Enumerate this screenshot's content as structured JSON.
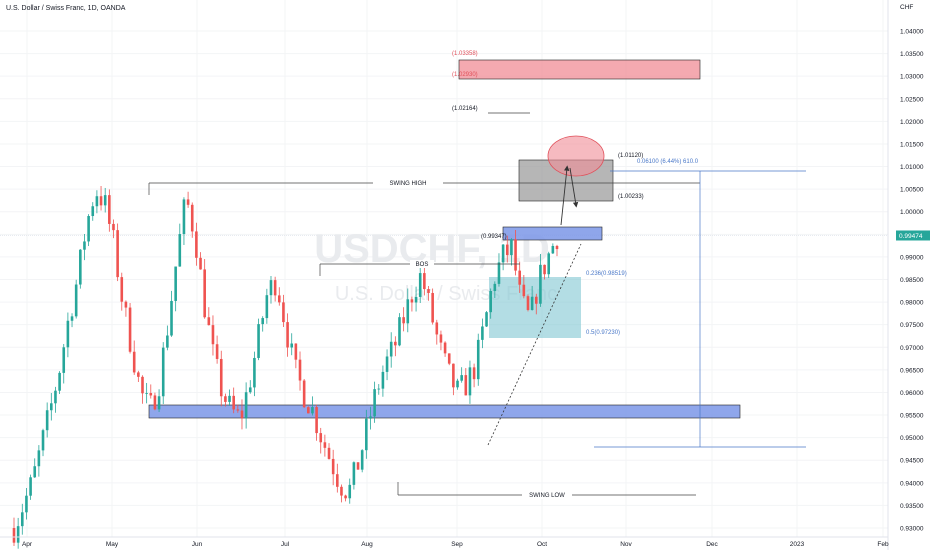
{
  "header": {
    "title": "U.S. Dollar / Swiss Franc, 1D, OANDA"
  },
  "watermark": {
    "symbol": "USDCHF, 1D",
    "name": "U.S. Dollar / Swiss Franc"
  },
  "chart_data": {
    "type": "candlestick",
    "currency": "CHF",
    "ylim": [
      0.927,
      1.0475
    ],
    "y_ticks": [
      "1.04000",
      "1.03500",
      "1.03000",
      "1.02500",
      "1.02000",
      "1.01500",
      "1.01000",
      "1.00500",
      "1.00000",
      "0.99500",
      "0.99000",
      "0.98500",
      "0.98000",
      "0.97500",
      "0.97000",
      "0.96500",
      "0.96000",
      "0.95500",
      "0.95000",
      "0.94500",
      "0.94000",
      "0.93500",
      "0.93000"
    ],
    "x_ticks": [
      "Apr",
      "May",
      "Jun",
      "Jul",
      "Aug",
      "Sep",
      "Oct",
      "Nov",
      "Dec",
      "2023",
      "Feb"
    ],
    "last_price": "0.99474",
    "colors": {
      "up": "#26a69a",
      "down": "#ef5350",
      "blue_zone": "#7b96e8",
      "red_zone": "#f08c96",
      "teal_zone": "#80c7d2",
      "gray_zone": "#9e9e9e",
      "price_tag": "#26a69a"
    },
    "close_path": [
      0.93,
      0.935,
      0.94,
      0.948,
      0.956,
      0.965,
      0.976,
      0.985,
      0.997,
      1.005,
      1.002,
      0.993,
      0.98,
      0.97,
      0.96,
      0.956,
      0.962,
      0.975,
      0.99,
      1.003,
      0.995,
      0.98,
      0.968,
      0.96,
      0.956,
      0.954,
      0.962,
      0.972,
      0.982,
      0.985,
      0.975,
      0.965,
      0.96,
      0.956,
      0.95,
      0.945,
      0.94,
      0.938,
      0.944,
      0.952,
      0.96,
      0.966,
      0.97,
      0.976,
      0.982,
      0.986,
      0.978,
      0.97,
      0.964,
      0.96,
      0.962,
      0.966,
      0.975,
      0.985,
      0.99,
      0.992,
      0.98,
      0.976,
      0.985,
      0.99,
      0.9947
    ],
    "annotations": {
      "red_prices": [
        "(1.03358)",
        "(1.02930)"
      ],
      "price_level": "(1.02164)",
      "gray_top": "(1.01120)",
      "gray_bottom": "(1.00233)",
      "blue_top": "(0.99347)",
      "swing_high": "SWING HIGH",
      "bos": "BOS",
      "swing_low": "SWING LOW",
      "fib_0236": "0.236(0.98519)",
      "fib_05": "0.5(0.97230)",
      "measure": "0.06100 (6.44%) 610.0"
    }
  }
}
